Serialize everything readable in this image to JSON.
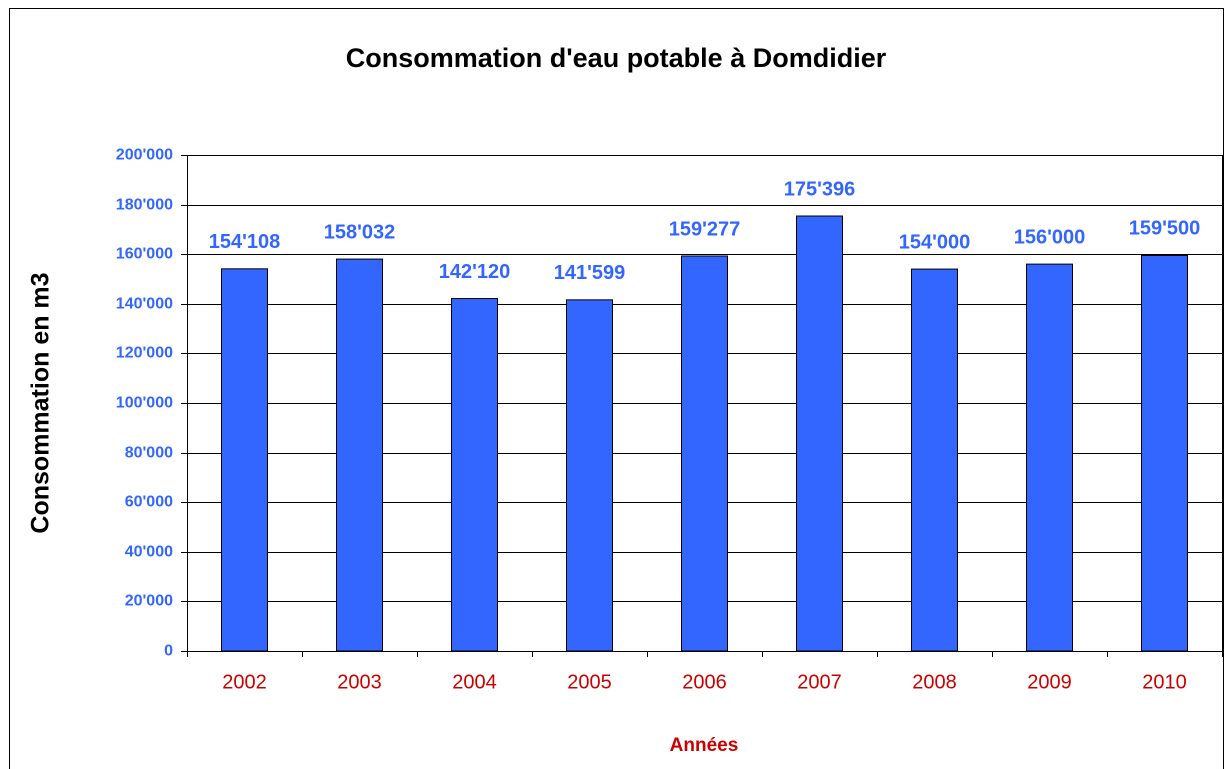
{
  "chart_data": {
    "type": "bar",
    "title": "Consommation d'eau potable à Domdidier",
    "x_label": "Années",
    "y_label": "Consommation en m3",
    "categories": [
      "2002",
      "2003",
      "2004",
      "2005",
      "2006",
      "2007",
      "2008",
      "2009",
      "2010"
    ],
    "values": [
      154108,
      158032,
      142120,
      141599,
      159277,
      175396,
      154000,
      156000,
      159500
    ],
    "value_labels": [
      "154'108",
      "158'032",
      "142'120",
      "141'599",
      "159'277",
      "175'396",
      "154'000",
      "156'000",
      "159'500"
    ],
    "color": "#3366ff",
    "ylim": [
      0,
      200000
    ],
    "yticks": [
      0,
      {
        "value": 20000,
        "label": "20'000"
      },
      {
        "value": 40000,
        "label": "40'000"
      },
      {
        "value": 60000,
        "label": "60'000"
      },
      {
        "value": 80000,
        "label": "80'000"
      },
      {
        "value": 100000,
        "label": "100'000"
      },
      {
        "value": 120000,
        "label": "120'000"
      },
      {
        "value": 140000,
        "label": "140'000"
      },
      {
        "value": 160000,
        "label": "160'000"
      },
      {
        "value": 180000,
        "label": "180'000"
      },
      {
        "value": 200000,
        "label": "200'000"
      }
    ],
    "grid": true
  }
}
